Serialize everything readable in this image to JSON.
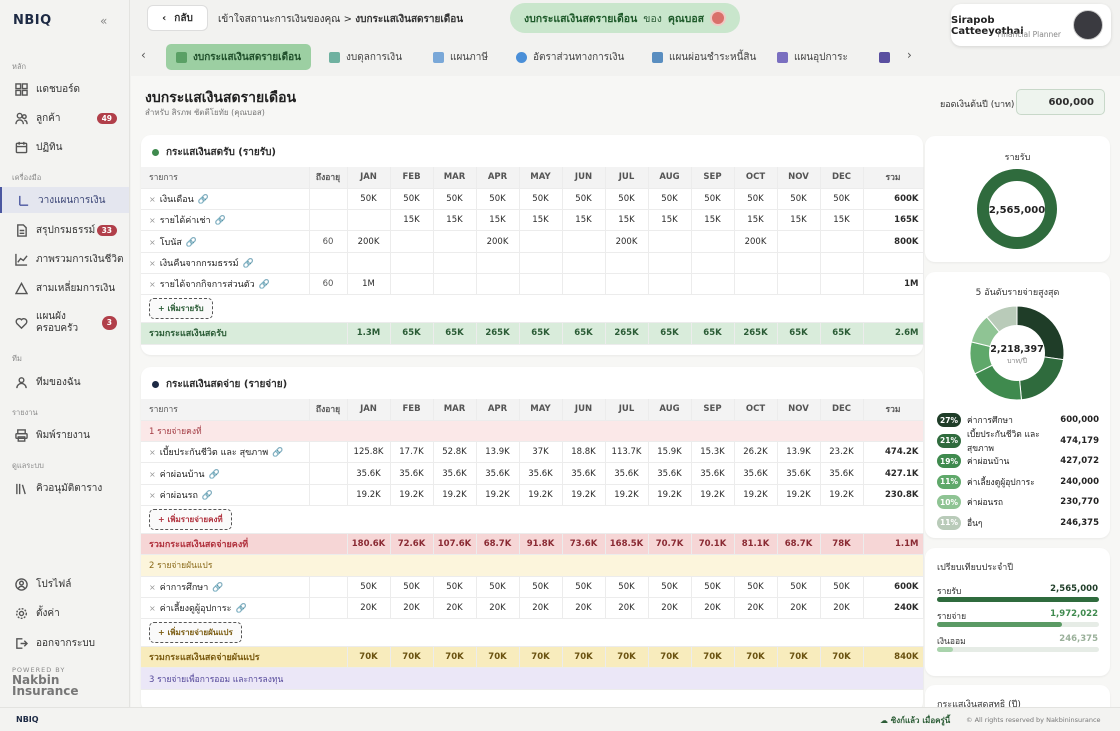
{
  "app": {
    "logo": "NBIQ",
    "collapse_icon": "chevrons-left-icon",
    "footer_logo": "NBIQ",
    "powered_by": "POWERED BY",
    "brand_line1": "Nakbin",
    "brand_line2": "Insurance"
  },
  "sidebar": {
    "sections": {
      "main": "หลัก",
      "tools": "เครื่องมือ",
      "team": "ทีม",
      "report": "รายงาน",
      "admin": "ดูแลระบบ"
    },
    "items": [
      {
        "label": "แดชบอร์ด",
        "icon": "dashboard-icon"
      },
      {
        "label": "ลูกค้า",
        "icon": "users-icon",
        "badge": "49"
      },
      {
        "label": "ปฏิทิน",
        "icon": "calendar-icon"
      },
      {
        "label": "วางแผนการเงิน",
        "icon": "pencil-icon"
      },
      {
        "label": "สรุปกรมธรรม์",
        "icon": "document-icon",
        "badge": "33"
      },
      {
        "label": "ภาพรวมการเงินชีวิต",
        "icon": "chart-line-icon"
      },
      {
        "label": "สามเหลี่ยมการเงิน",
        "icon": "triangle-icon"
      },
      {
        "label": "แผนผัง\nครอบครัว",
        "icon": "family-heart-icon",
        "badge": "3"
      },
      {
        "label": "ทีมของฉัน",
        "icon": "team-icon"
      },
      {
        "label": "พิมพ์รายงาน",
        "icon": "printer-icon"
      },
      {
        "label": "คิวอนุมัติตาราง",
        "icon": "library-icon"
      },
      {
        "label": "โปรไฟล์",
        "icon": "user-circle-icon"
      },
      {
        "label": "ตั้งค่า",
        "icon": "gear-icon"
      },
      {
        "label": "ออกจากระบบ",
        "icon": "logout-icon"
      }
    ]
  },
  "topbar": {
    "back_label": "กลับ",
    "crumb_1": "เข้าใจสถานะการเงินของคุณ",
    "crumb_sep": ">",
    "crumb_2": "งบกระแสเงินสดรายเดือน",
    "pill_title": "งบกระแสเงินสดรายเดือน",
    "pill_of": "ของ",
    "pill_client": "คุณบอส",
    "user_name": "Sirapob Catteeyothai",
    "user_role": "Financial Planner"
  },
  "tabs": [
    {
      "label": "งบกระแสเงินสดรายเดือน",
      "color": "#5aa065"
    },
    {
      "label": "งบดุลการเงิน",
      "color": "#6fb1a0"
    },
    {
      "label": "แผนภาษี",
      "color": "#7aa8d8"
    },
    {
      "label": "อัตราส่วนทางการเงิน",
      "color": "#4a8fd8"
    },
    {
      "label": "แผนผ่อนชำระหนี้สิน",
      "color": "#5a8ec0"
    },
    {
      "label": "แผนอุปการะ",
      "color": "#7a6fc0"
    }
  ],
  "page": {
    "title": "งบกระแสเงินสดรายเดือน",
    "subtitle": "สำหรับ สิรภพ ชัตตีโยทัย (คุณบอส)",
    "balance_label": "ยอดเงินต้นปี (บาท)",
    "balance_value": "600,000"
  },
  "months": [
    "JAN",
    "FEB",
    "MAR",
    "APR",
    "MAY",
    "JUN",
    "JUL",
    "AUG",
    "SEP",
    "OCT",
    "NOV",
    "DEC"
  ],
  "income": {
    "title": "กระแสเงินสดรับ (รายรับ)",
    "col_item": "รายการ",
    "col_age": "ถึงอายุ",
    "col_total": "รวม",
    "rows": [
      {
        "name": "เงินเดือน",
        "age": "",
        "m": [
          "50K",
          "50K",
          "50K",
          "50K",
          "50K",
          "50K",
          "50K",
          "50K",
          "50K",
          "50K",
          "50K",
          "50K"
        ],
        "total": "600K"
      },
      {
        "name": "รายได้ค่าเช่า",
        "age": "",
        "m": [
          "",
          "15K",
          "15K",
          "15K",
          "15K",
          "15K",
          "15K",
          "15K",
          "15K",
          "15K",
          "15K",
          "15K"
        ],
        "total": "165K"
      },
      {
        "name": "โบนัส",
        "age": "60",
        "m": [
          "200K",
          "",
          "",
          "200K",
          "",
          "",
          "200K",
          "",
          "",
          "200K",
          "",
          ""
        ],
        "total": "800K"
      },
      {
        "name": "เงินคืนจากกรมธรรม์",
        "age": "",
        "m": [
          "",
          "",
          "",
          "",
          "",
          "",
          "",
          "",
          "",
          "",
          "",
          ""
        ],
        "total": ""
      },
      {
        "name": "รายได้จากกิจการส่วนตัว",
        "age": "60",
        "m": [
          "1M",
          "",
          "",
          "",
          "",
          "",
          "",
          "",
          "",
          "",
          "",
          ""
        ],
        "total": "1M"
      }
    ],
    "add_label": "+ เพิ่มรายรับ",
    "sum": {
      "name": "รวมกระแสเงินสดรับ",
      "m": [
        "1.3M",
        "65K",
        "65K",
        "265K",
        "65K",
        "65K",
        "265K",
        "65K",
        "65K",
        "265K",
        "65K",
        "65K"
      ],
      "total": "2.6M"
    }
  },
  "expense": {
    "title": "กระแสเงินสดจ่าย (รายจ่าย)",
    "col_item": "รายการ",
    "col_age": "ถึงอายุ",
    "col_total": "รวม",
    "fixed_group": "1 รายจ่ายคงที่",
    "fixed_rows": [
      {
        "name": "เบี้ยประกันชีวิต และ สุขภาพ",
        "m": [
          "125.8K",
          "17.7K",
          "52.8K",
          "13.9K",
          "37K",
          "18.8K",
          "113.7K",
          "15.9K",
          "15.3K",
          "26.2K",
          "13.9K",
          "23.2K"
        ],
        "total": "474.2K"
      },
      {
        "name": "ค่าผ่อนบ้าน",
        "m": [
          "35.6K",
          "35.6K",
          "35.6K",
          "35.6K",
          "35.6K",
          "35.6K",
          "35.6K",
          "35.6K",
          "35.6K",
          "35.6K",
          "35.6K",
          "35.6K"
        ],
        "total": "427.1K"
      },
      {
        "name": "ค่าผ่อนรถ",
        "m": [
          "19.2K",
          "19.2K",
          "19.2K",
          "19.2K",
          "19.2K",
          "19.2K",
          "19.2K",
          "19.2K",
          "19.2K",
          "19.2K",
          "19.2K",
          "19.2K"
        ],
        "total": "230.8K"
      }
    ],
    "fixed_add": "+ เพิ่มรายจ่ายคงที่",
    "fixed_sum": {
      "name": "รวมกระแสเงินสดจ่ายคงที่",
      "m": [
        "180.6K",
        "72.6K",
        "107.6K",
        "68.7K",
        "91.8K",
        "73.6K",
        "168.5K",
        "70.7K",
        "70.1K",
        "81.1K",
        "68.7K",
        "78K"
      ],
      "total": "1.1M"
    },
    "var_group": "2 รายจ่ายผันแปร",
    "var_rows": [
      {
        "name": "ค่าการศึกษา",
        "m": [
          "50K",
          "50K",
          "50K",
          "50K",
          "50K",
          "50K",
          "50K",
          "50K",
          "50K",
          "50K",
          "50K",
          "50K"
        ],
        "total": "600K"
      },
      {
        "name": "ค่าเลี้ยงดูผู้อุปการะ",
        "m": [
          "20K",
          "20K",
          "20K",
          "20K",
          "20K",
          "20K",
          "20K",
          "20K",
          "20K",
          "20K",
          "20K",
          "20K"
        ],
        "total": "240K"
      }
    ],
    "var_add": "+ เพิ่มรายจ่ายผันแปร",
    "var_sum": {
      "name": "รวมกระแสเงินสดจ่ายผันแปร",
      "m": [
        "70K",
        "70K",
        "70K",
        "70K",
        "70K",
        "70K",
        "70K",
        "70K",
        "70K",
        "70K",
        "70K",
        "70K"
      ],
      "total": "840K"
    },
    "save_group": "3 รายจ่ายเพื่อการออม และการลงทุน"
  },
  "income_panel": {
    "title": "รายรับ",
    "value": "2,565,000"
  },
  "top5_panel": {
    "title": "5 อันดับรายจ่ายสูงสุด",
    "value": "2,218,397",
    "unit": "บาท/ปี",
    "items": [
      {
        "pct": "27%",
        "label": "ค่าการศึกษา",
        "value": "600,000",
        "color": "#1f3d28",
        "share": 27
      },
      {
        "pct": "21%",
        "label": "เบี้ยประกันชีวิต และ สุขภาพ",
        "value": "474,179",
        "color": "#2f6b3d",
        "share": 21
      },
      {
        "pct": "19%",
        "label": "ค่าผ่อนบ้าน",
        "value": "427,072",
        "color": "#3f8a4e",
        "share": 19
      },
      {
        "pct": "11%",
        "label": "ค่าเลี้ยงดูผู้อุปการะ",
        "value": "240,000",
        "color": "#5fa86a",
        "share": 11
      },
      {
        "pct": "10%",
        "label": "ค่าผ่อนรถ",
        "value": "230,770",
        "color": "#8fc494",
        "share": 10
      },
      {
        "pct": "11%",
        "label": "อื่นๆ",
        "value": "246,375",
        "color": "#b9cbb9",
        "share": 11
      }
    ]
  },
  "compare_panel": {
    "title": "เปรียบเทียบประจำปี",
    "rows": [
      {
        "label": "รายรับ",
        "value": "2,565,000",
        "fraction": 1.0,
        "color": "#2f6b3d",
        "text_color": "#1f3d28"
      },
      {
        "label": "รายจ่าย",
        "value": "1,972,022",
        "fraction": 0.77,
        "color": "#5a9a64",
        "text_color": "#3f8a4e"
      },
      {
        "label": "เงินออม",
        "value": "246,375",
        "fraction": 0.1,
        "color": "#a9d3ac",
        "text_color": "#9ab09a"
      }
    ]
  },
  "net_panel": {
    "title": "กระแสเงินสดสุทธิ (ปี)"
  },
  "footer": {
    "sync": "ซิงก์แล้ว เมื่อครู่นี้",
    "copy": "© All rights reserved by Nakbininsurance"
  }
}
